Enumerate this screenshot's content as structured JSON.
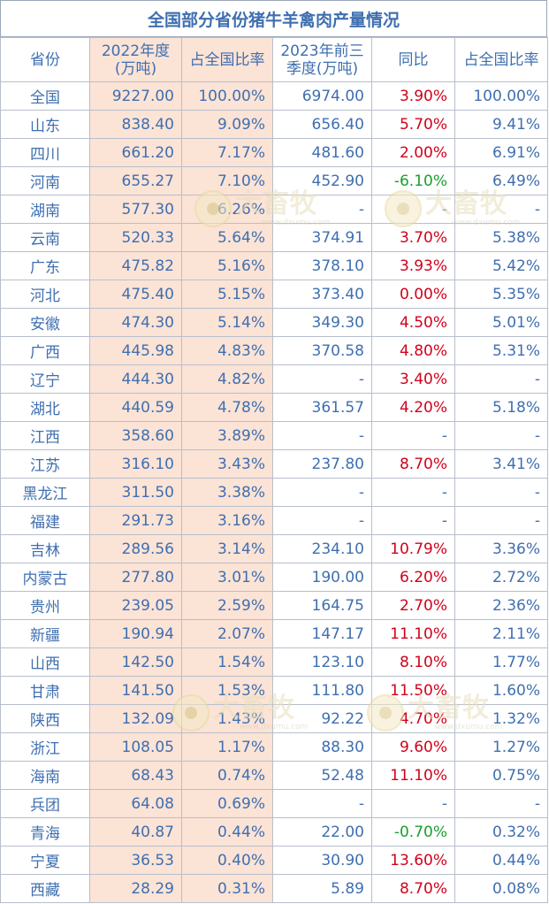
{
  "title": "全国部分省份猪牛羊禽肉产量情况",
  "headers": {
    "province": "省份",
    "y2022_line1": "2022年度",
    "y2022_line2": "(万吨)",
    "share2022": "占全国比率",
    "q2023_line1": "2023年前三",
    "q2023_line2": "季度(万吨)",
    "yoy": "同比",
    "share2023": "占全国比率"
  },
  "rows": [
    {
      "p": "全国",
      "v22": "9227.00",
      "s22": "100.00%",
      "v23": "6974.00",
      "yoy": "3.90%",
      "yc": "red",
      "s23": "100.00%"
    },
    {
      "p": "山东",
      "v22": "838.40",
      "s22": "9.09%",
      "v23": "656.40",
      "yoy": "5.70%",
      "yc": "red",
      "s23": "9.41%"
    },
    {
      "p": "四川",
      "v22": "661.20",
      "s22": "7.17%",
      "v23": "481.60",
      "yoy": "2.00%",
      "yc": "red",
      "s23": "6.91%"
    },
    {
      "p": "河南",
      "v22": "655.27",
      "s22": "7.10%",
      "v23": "452.90",
      "yoy": "-6.10%",
      "yc": "green",
      "s23": "6.49%"
    },
    {
      "p": "湖南",
      "v22": "577.30",
      "s22": "6.26%",
      "v23": "-",
      "yoy": "-",
      "yc": "blue",
      "s23": "-"
    },
    {
      "p": "云南",
      "v22": "520.33",
      "s22": "5.64%",
      "v23": "374.91",
      "yoy": "3.70%",
      "yc": "red",
      "s23": "5.38%"
    },
    {
      "p": "广东",
      "v22": "475.82",
      "s22": "5.16%",
      "v23": "378.10",
      "yoy": "3.93%",
      "yc": "red",
      "s23": "5.42%"
    },
    {
      "p": "河北",
      "v22": "475.40",
      "s22": "5.15%",
      "v23": "373.40",
      "yoy": "0.00%",
      "yc": "red",
      "s23": "5.35%"
    },
    {
      "p": "安徽",
      "v22": "474.30",
      "s22": "5.14%",
      "v23": "349.30",
      "yoy": "4.50%",
      "yc": "red",
      "s23": "5.01%"
    },
    {
      "p": "广西",
      "v22": "445.98",
      "s22": "4.83%",
      "v23": "370.58",
      "yoy": "4.80%",
      "yc": "red",
      "s23": "5.31%"
    },
    {
      "p": "辽宁",
      "v22": "444.30",
      "s22": "4.82%",
      "v23": "-",
      "yoy": "3.40%",
      "yc": "red",
      "s23": "-"
    },
    {
      "p": "湖北",
      "v22": "440.59",
      "s22": "4.78%",
      "v23": "361.57",
      "yoy": "4.20%",
      "yc": "red",
      "s23": "5.18%"
    },
    {
      "p": "江西",
      "v22": "358.60",
      "s22": "3.89%",
      "v23": "-",
      "yoy": "-",
      "yc": "blue",
      "s23": "-"
    },
    {
      "p": "江苏",
      "v22": "316.10",
      "s22": "3.43%",
      "v23": "237.80",
      "yoy": "8.70%",
      "yc": "red",
      "s23": "3.41%"
    },
    {
      "p": "黑龙江",
      "v22": "311.50",
      "s22": "3.38%",
      "v23": "-",
      "yoy": "-",
      "yc": "blue",
      "s23": "-"
    },
    {
      "p": "福建",
      "v22": "291.73",
      "s22": "3.16%",
      "v23": "-",
      "yoy": "-",
      "yc": "blue",
      "s23": "-"
    },
    {
      "p": "吉林",
      "v22": "289.56",
      "s22": "3.14%",
      "v23": "234.10",
      "yoy": "10.79%",
      "yc": "red",
      "s23": "3.36%"
    },
    {
      "p": "内蒙古",
      "v22": "277.80",
      "s22": "3.01%",
      "v23": "190.00",
      "yoy": "6.20%",
      "yc": "red",
      "s23": "2.72%"
    },
    {
      "p": "贵州",
      "v22": "239.05",
      "s22": "2.59%",
      "v23": "164.75",
      "yoy": "2.70%",
      "yc": "red",
      "s23": "2.36%"
    },
    {
      "p": "新疆",
      "v22": "190.94",
      "s22": "2.07%",
      "v23": "147.17",
      "yoy": "11.10%",
      "yc": "red",
      "s23": "2.11%"
    },
    {
      "p": "山西",
      "v22": "142.50",
      "s22": "1.54%",
      "v23": "123.10",
      "yoy": "8.10%",
      "yc": "red",
      "s23": "1.77%"
    },
    {
      "p": "甘肃",
      "v22": "141.50",
      "s22": "1.53%",
      "v23": "111.80",
      "yoy": "11.50%",
      "yc": "red",
      "s23": "1.60%"
    },
    {
      "p": "陕西",
      "v22": "132.09",
      "s22": "1.43%",
      "v23": "92.22",
      "yoy": "4.70%",
      "yc": "red",
      "s23": "1.32%"
    },
    {
      "p": "浙江",
      "v22": "108.05",
      "s22": "1.17%",
      "v23": "88.30",
      "yoy": "9.60%",
      "yc": "red",
      "s23": "1.27%"
    },
    {
      "p": "海南",
      "v22": "68.43",
      "s22": "0.74%",
      "v23": "52.48",
      "yoy": "11.10%",
      "yc": "red",
      "s23": "0.75%"
    },
    {
      "p": "兵团",
      "v22": "64.08",
      "s22": "0.69%",
      "v23": "-",
      "yoy": "-",
      "yc": "blue",
      "s23": "-"
    },
    {
      "p": "青海",
      "v22": "40.87",
      "s22": "0.44%",
      "v23": "22.00",
      "yoy": "-0.70%",
      "yc": "green",
      "s23": "0.32%"
    },
    {
      "p": "宁夏",
      "v22": "36.53",
      "s22": "0.40%",
      "v23": "30.90",
      "yoy": "13.60%",
      "yc": "red",
      "s23": "0.44%"
    },
    {
      "p": "西藏",
      "v22": "28.29",
      "s22": "0.31%",
      "v23": "5.89",
      "yoy": "8.70%",
      "yc": "red",
      "s23": "0.08%"
    }
  ],
  "watermark": {
    "text": "大畜牧",
    "url": "www.dxumu.com"
  },
  "colors": {
    "header_text": "#3f6fb0",
    "highlight_col": "#fbe3d6",
    "positive": "#d0021b",
    "negative": "#1a9e2e"
  }
}
